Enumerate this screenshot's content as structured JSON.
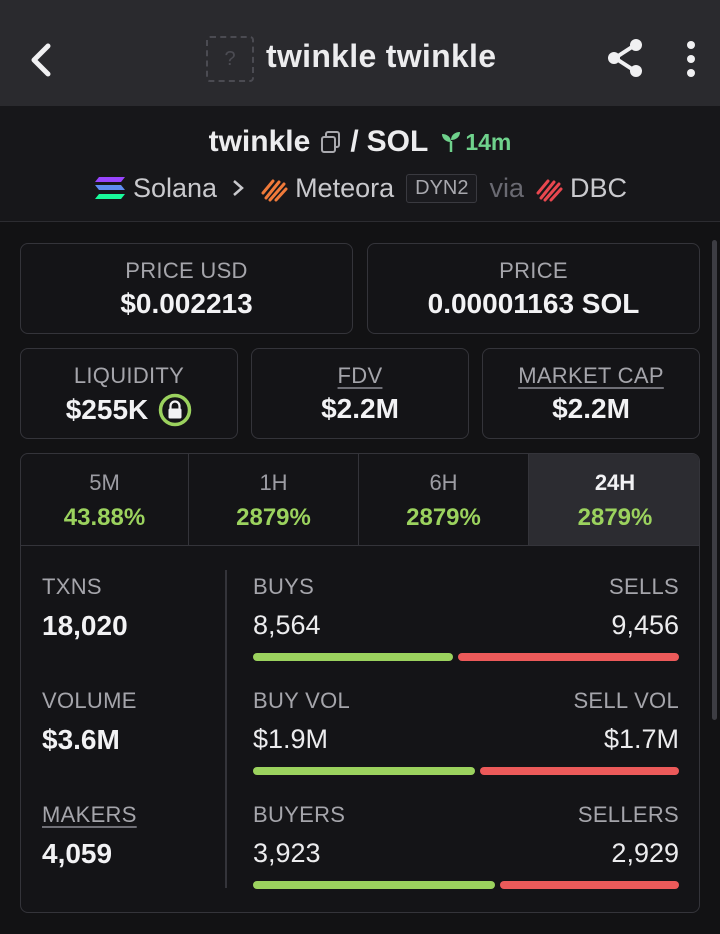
{
  "topbar": {
    "title": "twinkle twinkle",
    "token_icon_text": "?",
    "icons": {
      "back": "back-arrow-icon",
      "share": "share-icon",
      "more": "more-vertical-icon"
    }
  },
  "pair": {
    "base": "twinkle",
    "separator": "/",
    "quote": "SOL",
    "age": "14m",
    "age_color": "#6fd28c"
  },
  "chain": {
    "chain_name": "Solana",
    "dex_name": "Meteora",
    "dex_badge": "DYN2",
    "via": "via",
    "launchpad": "DBC"
  },
  "prices": {
    "price_usd_label": "PRICE USD",
    "price_usd": "$0.002213",
    "price_label": "PRICE",
    "price_native": "0.00001163 SOL"
  },
  "metrics": {
    "liquidity_label": "LIQUIDITY",
    "liquidity": "$255K",
    "fdv_label": "FDV",
    "fdv": "$2.2M",
    "mcap_label": "MARKET CAP",
    "mcap": "$2.2M"
  },
  "tabs": [
    {
      "label": "5M",
      "value": "43.88%"
    },
    {
      "label": "1H",
      "value": "2879%"
    },
    {
      "label": "6H",
      "value": "2879%"
    },
    {
      "label": "24H",
      "value": "2879%",
      "active": true
    }
  ],
  "stats": {
    "txns_label": "TXNS",
    "txns": "18,020",
    "volume_label": "VOLUME",
    "volume": "$3.6M",
    "makers_label": "MAKERS",
    "makers": "4,059"
  },
  "splits": {
    "buys_label": "BUYS",
    "sells_label": "SELLS",
    "buys": "8,564",
    "sells": "9,456",
    "buys_fraction": 0.475,
    "buy_vol_label": "BUY VOL",
    "sell_vol_label": "SELL VOL",
    "buy_vol": "$1.9M",
    "sell_vol": "$1.7M",
    "buy_vol_fraction": 0.528,
    "buyers_label": "BUYERS",
    "sellers_label": "SELLERS",
    "buyers": "3,923",
    "sellers": "2,929",
    "buyers_fraction": 0.573
  },
  "colors": {
    "green": "#9bd25e",
    "red": "#ec5a5a",
    "accent_lock": "#9bd25e"
  }
}
